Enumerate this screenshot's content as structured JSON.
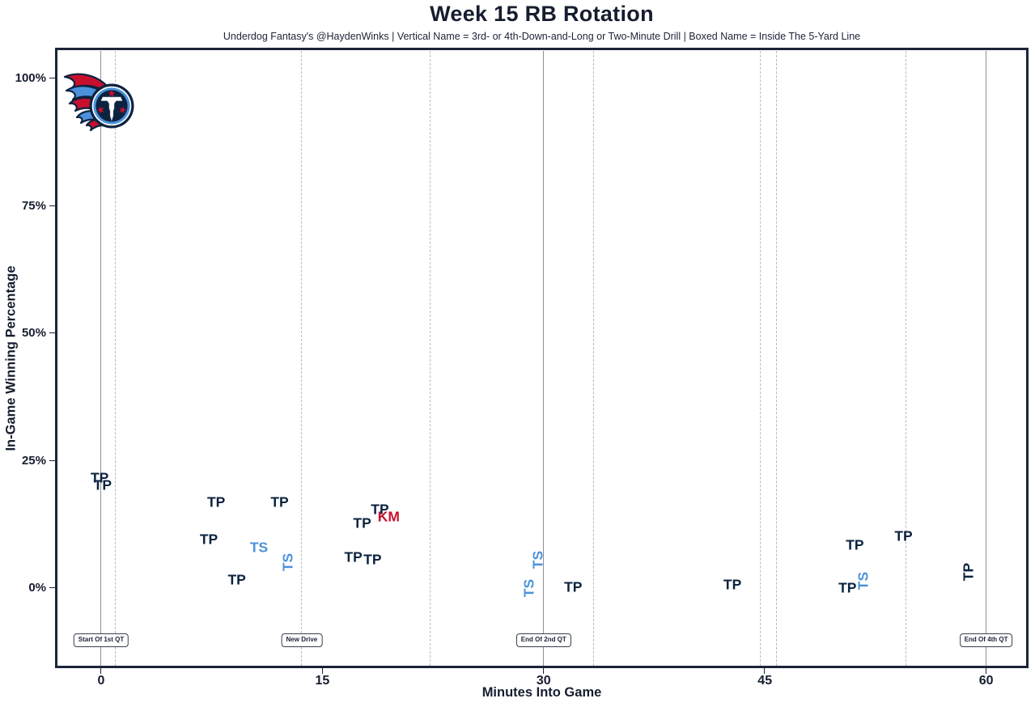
{
  "page": {
    "title": "Week 15 RB Rotation",
    "subtitle": "Underdog Fantasy's @HaydenWinks | Vertical Name = 3rd- or 4th-Down-and-Long or Two-Minute Drill | Boxed Name = Inside The 5-Yard Line"
  },
  "colors": {
    "navy": "#0C2340",
    "blue": "#4B92DB",
    "red": "#C8102E",
    "axis_text": "#161D2F",
    "border": "#1C2438",
    "solid_line": "#8F8F8F",
    "dashed_line": "#B9B9B9",
    "background": "#FFFFFF"
  },
  "logo": {
    "name": "tennessee-titans-logo"
  },
  "chart_data": {
    "type": "scatter",
    "title": "Week 15 RB Rotation",
    "subtitle": "Underdog Fantasy's @HaydenWinks | Vertical Name = 3rd- or 4th-Down-and-Long or Two-Minute Drill | Boxed Name = Inside The 5-Yard Line",
    "xlabel": "Minutes Into Game",
    "ylabel": "In-Game Winning Percentage",
    "xlim": [
      -3.1,
      62.9
    ],
    "ylim": [
      -15.5,
      106
    ],
    "grid": "vertical-lines-only",
    "legend_position": "none",
    "x_ticks": [
      {
        "value": 0,
        "label": "0"
      },
      {
        "value": 15,
        "label": "15"
      },
      {
        "value": 30,
        "label": "30"
      },
      {
        "value": 45,
        "label": "45"
      },
      {
        "value": 60,
        "label": "60"
      }
    ],
    "y_ticks": [
      {
        "value": 0,
        "label": "0%"
      },
      {
        "value": 25,
        "label": "25%"
      },
      {
        "value": 50,
        "label": "50%"
      },
      {
        "value": 75,
        "label": "75%"
      },
      {
        "value": 100,
        "label": "100%"
      }
    ],
    "player_colors": {
      "TP": "navy",
      "TS": "blue",
      "KM": "red"
    },
    "points": [
      {
        "player": "TP",
        "min": -0.1,
        "win_pct": 21.6,
        "rotated": false
      },
      {
        "player": "TP",
        "min": 0.1,
        "win_pct": 20.2,
        "rotated": false
      },
      {
        "player": "TP",
        "min": 7.3,
        "win_pct": 9.5,
        "rotated": false
      },
      {
        "player": "TP",
        "min": 7.8,
        "win_pct": 16.8,
        "rotated": false
      },
      {
        "player": "TP",
        "min": 9.2,
        "win_pct": 1.6,
        "rotated": false
      },
      {
        "player": "TS",
        "min": 10.7,
        "win_pct": 7.9,
        "rotated": false
      },
      {
        "player": "TP",
        "min": 12.1,
        "win_pct": 16.8,
        "rotated": false
      },
      {
        "player": "TS",
        "min": 12.7,
        "win_pct": 5.1,
        "rotated": true
      },
      {
        "player": "TP",
        "min": 17.1,
        "win_pct": 6.0,
        "rotated": false
      },
      {
        "player": "TP",
        "min": 17.7,
        "win_pct": 12.7,
        "rotated": false
      },
      {
        "player": "TP",
        "min": 18.4,
        "win_pct": 5.6,
        "rotated": false
      },
      {
        "player": "TP",
        "min": 18.9,
        "win_pct": 15.4,
        "rotated": false
      },
      {
        "player": "KM",
        "min": 19.5,
        "win_pct": 14.0,
        "rotated": false
      },
      {
        "player": "TS",
        "min": 29.0,
        "win_pct": 0.0,
        "rotated": true
      },
      {
        "player": "TS",
        "min": 29.6,
        "win_pct": 5.5,
        "rotated": true
      },
      {
        "player": "TP",
        "min": 32.0,
        "win_pct": 0.1,
        "rotated": false
      },
      {
        "player": "TP",
        "min": 42.8,
        "win_pct": 0.6,
        "rotated": false
      },
      {
        "player": "TP",
        "min": 50.6,
        "win_pct": 0.0,
        "rotated": false
      },
      {
        "player": "TP",
        "min": 51.1,
        "win_pct": 8.4,
        "rotated": false
      },
      {
        "player": "TS",
        "min": 51.7,
        "win_pct": 1.4,
        "rotated": true
      },
      {
        "player": "TP",
        "min": 54.4,
        "win_pct": 10.2,
        "rotated": false
      },
      {
        "player": "TP",
        "min": 58.8,
        "win_pct": 3.2,
        "rotated": true
      }
    ],
    "event_lines": {
      "solid_minutes": [
        0,
        30,
        60
      ],
      "dashed_minutes": [
        1.0,
        13.6,
        22.3,
        33.4,
        44.7,
        45.8,
        54.6
      ]
    },
    "annotation_boxes": [
      {
        "label": "Start Of 1st QT",
        "min": 0
      },
      {
        "label": "New Drive",
        "min": 13.6
      },
      {
        "label": "End Of 2nd QT",
        "min": 30
      },
      {
        "label": "End Of 4th QT",
        "min": 60
      }
    ]
  }
}
